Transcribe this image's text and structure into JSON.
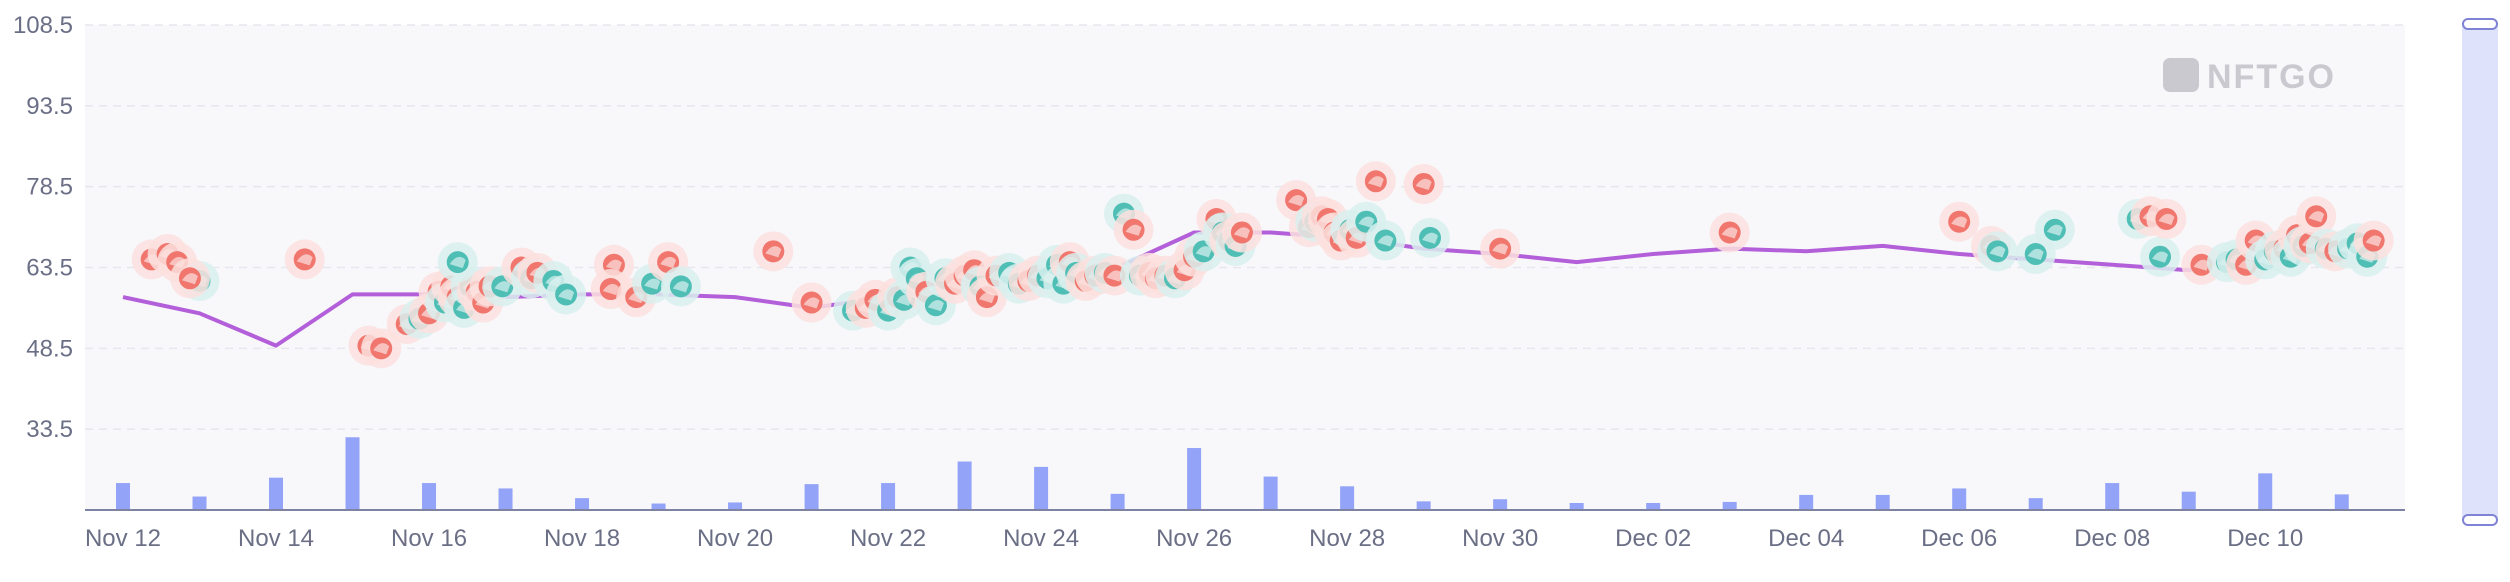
{
  "watermark": "NFTGO",
  "chart_data": {
    "type": "scatter",
    "title": "",
    "xlabel": "",
    "ylabel": "",
    "ylim": [
      18.5,
      108.5
    ],
    "yticks": [
      "108.5",
      "93.5",
      "78.5",
      "63.5",
      "48.5",
      "33.5"
    ],
    "xticks": [
      "Nov 12",
      "Nov 14",
      "Nov 16",
      "Nov 18",
      "Nov 20",
      "Nov 22",
      "Nov 24",
      "Nov 26",
      "Nov 28",
      "Nov 30",
      "Dec 02",
      "Dec 04",
      "Dec 06",
      "Dec 08",
      "Dec 10"
    ],
    "grid": true,
    "colors": {
      "line": "#b35fd9",
      "volume": "#93a3f7",
      "sale_red": "#f0766e",
      "sale_teal": "#4fbfb5",
      "plot_bg": "#f8f8fb",
      "scrollbar": "#dfe2fb"
    },
    "line_series": {
      "x": [
        "2022-11-12",
        "2022-11-13",
        "2022-11-14",
        "2022-11-15",
        "2022-11-16",
        "2022-11-17",
        "2022-11-18",
        "2022-11-19",
        "2022-11-20",
        "2022-11-21",
        "2022-11-22",
        "2022-11-23",
        "2022-11-24",
        "2022-11-25",
        "2022-11-26",
        "2022-11-27",
        "2022-11-28",
        "2022-11-29",
        "2022-11-30",
        "2022-12-01",
        "2022-12-02",
        "2022-12-03",
        "2022-12-04",
        "2022-12-05",
        "2022-12-06",
        "2022-12-07",
        "2022-12-08",
        "2022-12-09",
        "2022-12-10",
        "2022-12-11"
      ],
      "values": [
        58,
        55,
        49,
        58.5,
        58.5,
        58,
        58.5,
        58.5,
        58,
        56,
        58,
        61,
        62,
        63.5,
        70,
        70,
        69,
        67,
        66,
        64.5,
        66,
        67,
        66.5,
        67.5,
        66,
        65,
        64,
        63,
        67.5,
        67
      ]
    },
    "volume_series": {
      "x": [
        "2022-11-12",
        "2022-11-13",
        "2022-11-14",
        "2022-11-15",
        "2022-11-16",
        "2022-11-17",
        "2022-11-18",
        "2022-11-19",
        "2022-11-20",
        "2022-11-21",
        "2022-11-22",
        "2022-11-23",
        "2022-11-24",
        "2022-11-25",
        "2022-11-26",
        "2022-11-27",
        "2022-11-28",
        "2022-11-29",
        "2022-11-30",
        "2022-12-01",
        "2022-12-02",
        "2022-12-03",
        "2022-12-04",
        "2022-12-05",
        "2022-12-06",
        "2022-12-07",
        "2022-12-08",
        "2022-12-09",
        "2022-12-10",
        "2022-12-11"
      ],
      "values": [
        5,
        2.5,
        6,
        13.5,
        5,
        4,
        2.2,
        1.2,
        1.4,
        4.8,
        5,
        9,
        8,
        3,
        11.5,
        6.2,
        4.4,
        1.6,
        2,
        1.3,
        1.3,
        1.5,
        2.8,
        2.8,
        4,
        2.2,
        5,
        3.4,
        6.8,
        2.9
      ]
    },
    "sales": [
      {
        "x": "2022-11-12 09:00",
        "y": 65,
        "side": "red"
      },
      {
        "x": "2022-11-12 14:00",
        "y": 66,
        "side": "red"
      },
      {
        "x": "2022-11-12 17:00",
        "y": 64.5,
        "side": "red"
      },
      {
        "x": "2022-11-13 00:00",
        "y": 61,
        "side": "teal"
      },
      {
        "x": "2022-11-12 21:00",
        "y": 61.5,
        "side": "red"
      },
      {
        "x": "2022-11-14 09:00",
        "y": 65,
        "side": "red"
      },
      {
        "x": "2022-11-15 05:00",
        "y": 49,
        "side": "red"
      },
      {
        "x": "2022-11-15 09:00",
        "y": 48.5,
        "side": "red"
      },
      {
        "x": "2022-11-15 17:00",
        "y": 53,
        "side": "red"
      },
      {
        "x": "2022-11-15 21:00",
        "y": 54,
        "side": "teal"
      },
      {
        "x": "2022-11-16 00:00",
        "y": 55,
        "side": "red"
      },
      {
        "x": "2022-11-16 03:00",
        "y": 59,
        "side": "red"
      },
      {
        "x": "2022-11-16 05:00",
        "y": 57,
        "side": "teal"
      },
      {
        "x": "2022-11-16 07:00",
        "y": 60,
        "side": "red"
      },
      {
        "x": "2022-11-16 09:00",
        "y": 58,
        "side": "red"
      },
      {
        "x": "2022-11-16 11:00",
        "y": 56,
        "side": "teal"
      },
      {
        "x": "2022-11-16 13:00",
        "y": 60,
        "side": "teal"
      },
      {
        "x": "2022-11-16 15:00",
        "y": 59,
        "side": "red"
      },
      {
        "x": "2022-11-16 17:00",
        "y": 57,
        "side": "red"
      },
      {
        "x": "2022-11-16 19:00",
        "y": 60,
        "side": "red"
      },
      {
        "x": "2022-11-16 09:00",
        "y": 64.5,
        "side": "teal"
      },
      {
        "x": "2022-11-16 23:00",
        "y": 60,
        "side": "teal"
      },
      {
        "x": "2022-11-17 05:00",
        "y": 63.5,
        "side": "red"
      },
      {
        "x": "2022-11-17 08:00",
        "y": 61.5,
        "side": "teal"
      },
      {
        "x": "2022-11-17 10:00",
        "y": 62.5,
        "side": "red"
      },
      {
        "x": "2022-11-17 15:00",
        "y": 61,
        "side": "teal"
      },
      {
        "x": "2022-11-17 19:00",
        "y": 58.5,
        "side": "teal"
      },
      {
        "x": "2022-11-18 10:00",
        "y": 64,
        "side": "red"
      },
      {
        "x": "2022-11-18 09:00",
        "y": 59.5,
        "side": "red"
      },
      {
        "x": "2022-11-18 17:00",
        "y": 58,
        "side": "red"
      },
      {
        "x": "2022-11-18 22:00",
        "y": 60.5,
        "side": "teal"
      },
      {
        "x": "2022-11-19 03:00",
        "y": 64.5,
        "side": "red"
      },
      {
        "x": "2022-11-19 07:00",
        "y": 60,
        "side": "teal"
      },
      {
        "x": "2022-11-20 12:00",
        "y": 66.5,
        "side": "red"
      },
      {
        "x": "2022-11-21 00:00",
        "y": 57,
        "side": "red"
      },
      {
        "x": "2022-11-21 13:00",
        "y": 55.5,
        "side": "teal"
      },
      {
        "x": "2022-11-21 17:00",
        "y": 56,
        "side": "red"
      },
      {
        "x": "2022-11-21 20:00",
        "y": 57.5,
        "side": "red"
      },
      {
        "x": "2022-11-22 00:00",
        "y": 55.5,
        "side": "teal"
      },
      {
        "x": "2022-11-22 03:00",
        "y": 58,
        "side": "red"
      },
      {
        "x": "2022-11-22 05:00",
        "y": 57.5,
        "side": "teal"
      },
      {
        "x": "2022-11-22 07:00",
        "y": 63.5,
        "side": "teal"
      },
      {
        "x": "2022-11-22 09:00",
        "y": 61.5,
        "side": "teal"
      },
      {
        "x": "2022-11-22 12:00",
        "y": 59,
        "side": "red"
      },
      {
        "x": "2022-11-22 15:00",
        "y": 56.5,
        "side": "teal"
      },
      {
        "x": "2022-11-22 18:00",
        "y": 61.5,
        "side": "teal"
      },
      {
        "x": "2022-11-22 21:00",
        "y": 60.5,
        "side": "red"
      },
      {
        "x": "2022-11-23 00:00",
        "y": 62,
        "side": "red"
      },
      {
        "x": "2022-11-23 03:00",
        "y": 63,
        "side": "red"
      },
      {
        "x": "2022-11-23 05:00",
        "y": 60,
        "side": "teal"
      },
      {
        "x": "2022-11-23 07:00",
        "y": 58,
        "side": "red"
      },
      {
        "x": "2022-11-23 10:00",
        "y": 62,
        "side": "red"
      },
      {
        "x": "2022-11-23 14:00",
        "y": 62.5,
        "side": "teal"
      },
      {
        "x": "2022-11-23 17:00",
        "y": 60.5,
        "side": "teal"
      },
      {
        "x": "2022-11-23 20:00",
        "y": 61,
        "side": "red"
      },
      {
        "x": "2022-11-23 23:00",
        "y": 62,
        "side": "red"
      },
      {
        "x": "2022-11-24 02:00",
        "y": 61.5,
        "side": "teal"
      },
      {
        "x": "2022-11-24 05:00",
        "y": 64,
        "side": "teal"
      },
      {
        "x": "2022-11-24 07:00",
        "y": 60.5,
        "side": "teal"
      },
      {
        "x": "2022-11-24 09:00",
        "y": 64.5,
        "side": "red"
      },
      {
        "x": "2022-11-24 11:00",
        "y": 62.5,
        "side": "teal"
      },
      {
        "x": "2022-11-24 14:00",
        "y": 61,
        "side": "red"
      },
      {
        "x": "2022-11-24 17:00",
        "y": 62,
        "side": "red"
      },
      {
        "x": "2022-11-24 20:00",
        "y": 62.5,
        "side": "teal"
      },
      {
        "x": "2022-11-24 23:00",
        "y": 62,
        "side": "red"
      },
      {
        "x": "2022-11-25 02:00",
        "y": 73.5,
        "side": "teal"
      },
      {
        "x": "2022-11-25 05:00",
        "y": 70.5,
        "side": "red"
      },
      {
        "x": "2022-11-25 07:00",
        "y": 62,
        "side": "teal"
      },
      {
        "x": "2022-11-25 10:00",
        "y": 62.5,
        "side": "red"
      },
      {
        "x": "2022-11-25 12:00",
        "y": 61.5,
        "side": "red"
      },
      {
        "x": "2022-11-25 15:00",
        "y": 62,
        "side": "red"
      },
      {
        "x": "2022-11-25 18:00",
        "y": 61.5,
        "side": "teal"
      },
      {
        "x": "2022-11-25 21:00",
        "y": 63,
        "side": "red"
      },
      {
        "x": "2022-11-26 00:00",
        "y": 65.5,
        "side": "red"
      },
      {
        "x": "2022-11-26 03:00",
        "y": 66.5,
        "side": "teal"
      },
      {
        "x": "2022-11-26 07:00",
        "y": 72.5,
        "side": "red"
      },
      {
        "x": "2022-11-26 09:00",
        "y": 70,
        "side": "teal"
      },
      {
        "x": "2022-11-26 11:00",
        "y": 68.5,
        "side": "red"
      },
      {
        "x": "2022-11-26 13:00",
        "y": 67.5,
        "side": "teal"
      },
      {
        "x": "2022-11-26 15:00",
        "y": 70,
        "side": "red"
      },
      {
        "x": "2022-11-27 08:00",
        "y": 76,
        "side": "red"
      },
      {
        "x": "2022-11-27 12:00",
        "y": 71,
        "side": "red"
      },
      {
        "x": "2022-11-27 14:00",
        "y": 72,
        "side": "teal"
      },
      {
        "x": "2022-11-27 16:00",
        "y": 73,
        "side": "red"
      },
      {
        "x": "2022-11-27 18:00",
        "y": 72.5,
        "side": "red"
      },
      {
        "x": "2022-11-27 20:00",
        "y": 70,
        "side": "red"
      },
      {
        "x": "2022-11-27 22:00",
        "y": 68.5,
        "side": "red"
      },
      {
        "x": "2022-11-28 01:00",
        "y": 70.5,
        "side": "teal"
      },
      {
        "x": "2022-11-28 03:00",
        "y": 69,
        "side": "red"
      },
      {
        "x": "2022-11-28 06:00",
        "y": 72,
        "side": "teal"
      },
      {
        "x": "2022-11-28 09:00",
        "y": 79.5,
        "side": "red"
      },
      {
        "x": "2022-11-28 12:00",
        "y": 68.5,
        "side": "teal"
      },
      {
        "x": "2022-11-29 00:00",
        "y": 79,
        "side": "red"
      },
      {
        "x": "2022-11-29 02:00",
        "y": 69,
        "side": "teal"
      },
      {
        "x": "2022-11-30 00:00",
        "y": 67,
        "side": "red"
      },
      {
        "x": "2022-12-03 00:00",
        "y": 70,
        "side": "red"
      },
      {
        "x": "2022-12-06 00:00",
        "y": 72,
        "side": "red"
      },
      {
        "x": "2022-12-06 10:00",
        "y": 67.5,
        "side": "red"
      },
      {
        "x": "2022-12-06 12:00",
        "y": 66.5,
        "side": "teal"
      },
      {
        "x": "2022-12-07 00:00",
        "y": 66,
        "side": "teal"
      },
      {
        "x": "2022-12-07 06:00",
        "y": 70.5,
        "side": "teal"
      },
      {
        "x": "2022-12-08 08:00",
        "y": 72.5,
        "side": "teal"
      },
      {
        "x": "2022-12-08 12:00",
        "y": 73,
        "side": "red"
      },
      {
        "x": "2022-12-08 15:00",
        "y": 65.5,
        "side": "teal"
      },
      {
        "x": "2022-12-08 17:00",
        "y": 72.5,
        "side": "red"
      },
      {
        "x": "2022-12-09 04:00",
        "y": 64,
        "side": "red"
      },
      {
        "x": "2022-12-09 12:00",
        "y": 64.5,
        "side": "teal"
      },
      {
        "x": "2022-12-09 15:00",
        "y": 65,
        "side": "teal"
      },
      {
        "x": "2022-12-09 18:00",
        "y": 64,
        "side": "red"
      },
      {
        "x": "2022-12-09 21:00",
        "y": 68.5,
        "side": "red"
      },
      {
        "x": "2022-12-10 00:00",
        "y": 65,
        "side": "teal"
      },
      {
        "x": "2022-12-10 03:00",
        "y": 66.5,
        "side": "teal"
      },
      {
        "x": "2022-12-10 06:00",
        "y": 67,
        "side": "red"
      },
      {
        "x": "2022-12-10 08:00",
        "y": 65.5,
        "side": "teal"
      },
      {
        "x": "2022-12-10 10:00",
        "y": 69.5,
        "side": "red"
      },
      {
        "x": "2022-12-10 12:00",
        "y": 67.5,
        "side": "teal"
      },
      {
        "x": "2022-12-10 14:00",
        "y": 68,
        "side": "red"
      },
      {
        "x": "2022-12-10 16:00",
        "y": 73,
        "side": "red"
      },
      {
        "x": "2022-12-10 19:00",
        "y": 67,
        "side": "teal"
      },
      {
        "x": "2022-12-10 22:00",
        "y": 66.5,
        "side": "red"
      },
      {
        "x": "2022-12-11 02:00",
        "y": 67,
        "side": "teal"
      },
      {
        "x": "2022-12-11 05:00",
        "y": 68,
        "side": "teal"
      },
      {
        "x": "2022-12-11 08:00",
        "y": 65.5,
        "side": "teal"
      },
      {
        "x": "2022-12-11 10:00",
        "y": 68.5,
        "side": "red"
      }
    ]
  }
}
